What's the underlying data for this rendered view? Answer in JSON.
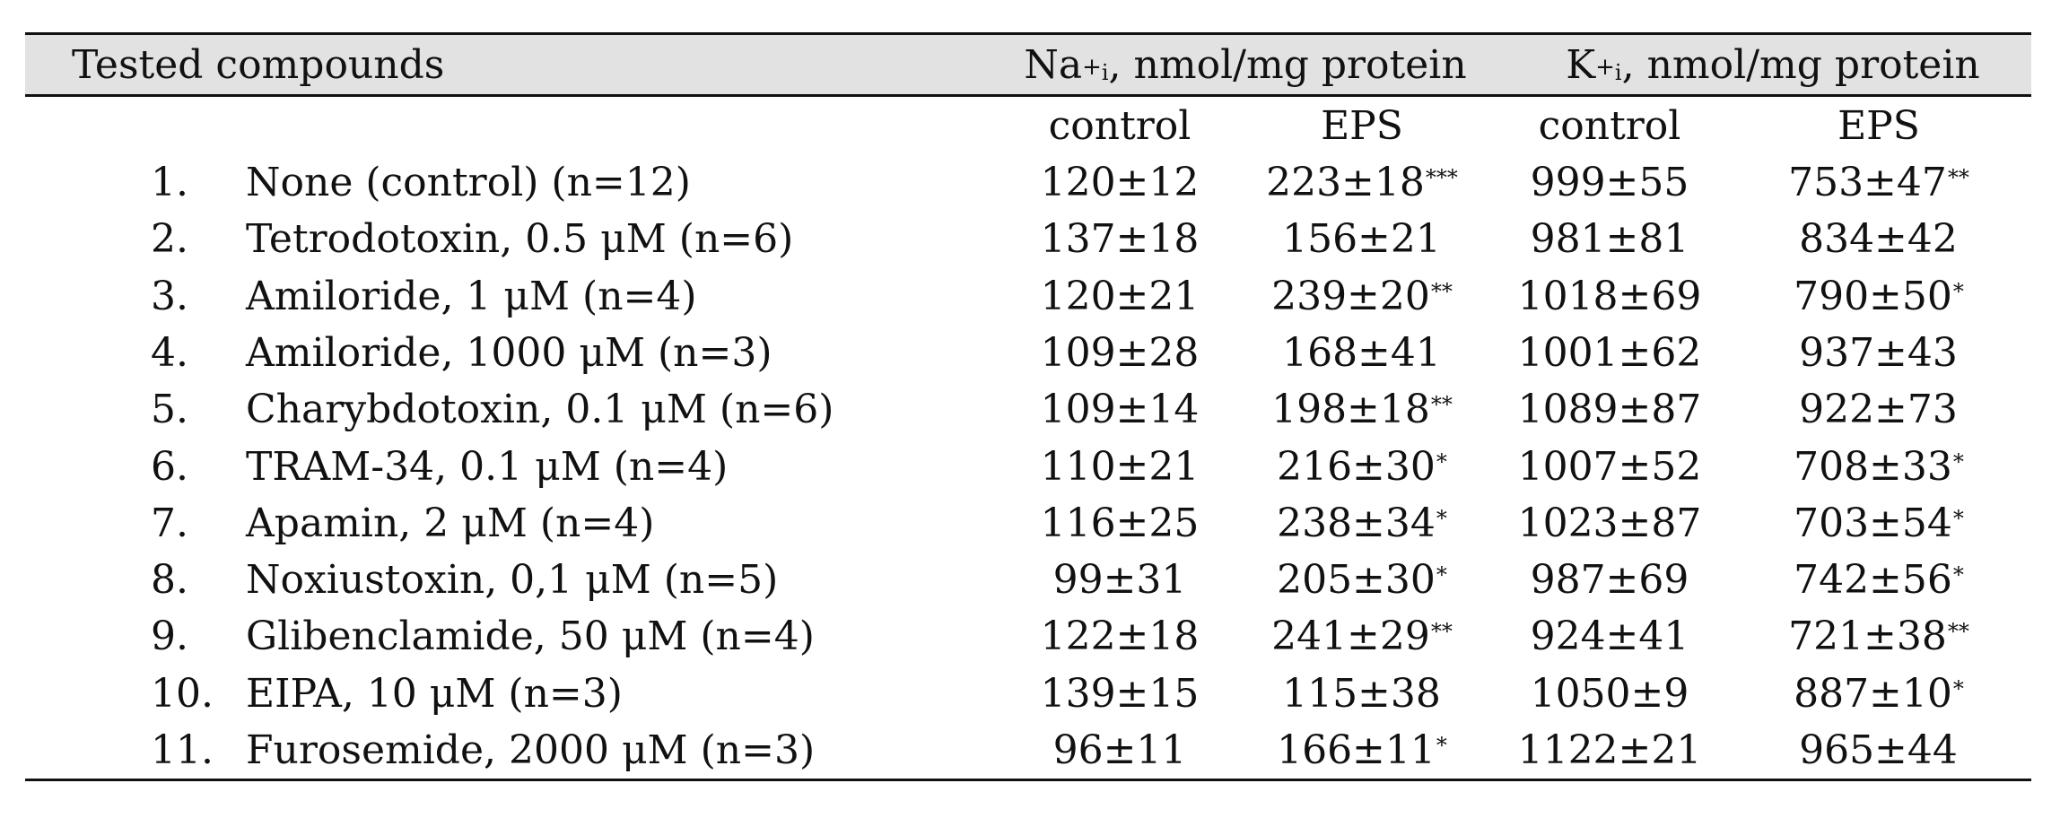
{
  "table": {
    "header": {
      "compounds": "Tested compounds",
      "na_group": {
        "ion": "Na",
        "sup": "+",
        "sub": "i",
        "rest": ", nmol/mg protein"
      },
      "k_group": {
        "ion": "K",
        "sup": "+",
        "sub": "i",
        "rest": ", nmol/mg protein"
      }
    },
    "subheader": {
      "na_control": "control",
      "na_eps": "EPS",
      "k_control": "control",
      "k_eps": "EPS"
    },
    "rows": [
      {
        "num": "1.",
        "compound": "None (control) (n=12)",
        "na_control": "120±12",
        "na_eps": "223±18",
        "na_eps_sig": "***",
        "k_control": "999±55",
        "k_eps": "753±47",
        "k_eps_sig": "**"
      },
      {
        "num": "2.",
        "compound": "Tetrodotoxin, 0.5 μM (n=6)",
        "na_control": "137±18",
        "na_eps": "156±21",
        "na_eps_sig": "",
        "k_control": "981±81",
        "k_eps": "834±42",
        "k_eps_sig": ""
      },
      {
        "num": "3.",
        "compound": "Amiloride, 1 μM (n=4)",
        "na_control": "120±21",
        "na_eps": "239±20",
        "na_eps_sig": "**",
        "k_control": "1018±69",
        "k_eps": "790±50",
        "k_eps_sig": "*"
      },
      {
        "num": "4.",
        "compound": "Amiloride, 1000 μM (n=3)",
        "na_control": "109±28",
        "na_eps": "168±41",
        "na_eps_sig": "",
        "k_control": "1001±62",
        "k_eps": "937±43",
        "k_eps_sig": ""
      },
      {
        "num": "5.",
        "compound": "Charybdotoxin, 0.1 μM (n=6)",
        "na_control": "109±14",
        "na_eps": "198±18",
        "na_eps_sig": "**",
        "k_control": "1089±87",
        "k_eps": "922±73",
        "k_eps_sig": ""
      },
      {
        "num": "6.",
        "compound": "TRAM-34, 0.1 μM (n=4)",
        "na_control": "110±21",
        "na_eps": "216±30",
        "na_eps_sig": "*",
        "k_control": "1007±52",
        "k_eps": "708±33",
        "k_eps_sig": "*"
      },
      {
        "num": "7.",
        "compound": "Apamin, 2 μM (n=4)",
        "na_control": "116±25",
        "na_eps": "238±34",
        "na_eps_sig": "*",
        "k_control": "1023±87",
        "k_eps": "703±54",
        "k_eps_sig": "*"
      },
      {
        "num": "8.",
        "compound": "Noxiustoxin, 0,1 μM (n=5)",
        "na_control": "99±31",
        "na_eps": "205±30",
        "na_eps_sig": "*",
        "k_control": "987±69",
        "k_eps": "742±56",
        "k_eps_sig": "*"
      },
      {
        "num": "9.",
        "compound": "Glibenclamide, 50 μM (n=4)",
        "na_control": "122±18",
        "na_eps": "241±29",
        "na_eps_sig": "**",
        "k_control": "924±41",
        "k_eps": "721±38",
        "k_eps_sig": "**"
      },
      {
        "num": "10.",
        "compound": "EIPA, 10 μM (n=3)",
        "na_control": "139±15",
        "na_eps": "115±38",
        "na_eps_sig": "",
        "k_control": "1050±9",
        "k_eps": "887±10",
        "k_eps_sig": "*"
      },
      {
        "num": "11.",
        "compound": "Furosemide, 2000 μM (n=3)",
        "na_control": "96±11",
        "na_eps": "166±11",
        "na_eps_sig": "*",
        "k_control": "1122±21",
        "k_eps": "965±44",
        "k_eps_sig": ""
      }
    ]
  }
}
